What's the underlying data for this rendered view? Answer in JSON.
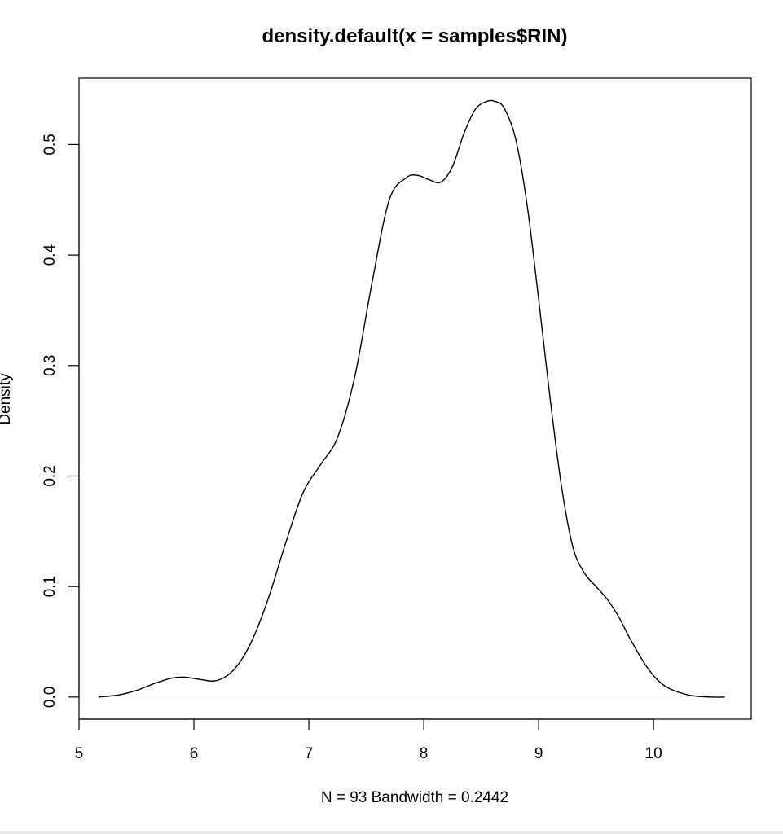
{
  "chart_data": {
    "type": "line",
    "title": "density.default(x = samples$RIN)",
    "xlabel": "N = 93   Bandwidth = 0.2442",
    "ylabel": "Density",
    "xlim": [
      5.0,
      10.85
    ],
    "ylim": [
      -0.02,
      0.56
    ],
    "x_ticks": [
      5,
      6,
      7,
      8,
      9,
      10
    ],
    "y_ticks": [
      0.0,
      0.1,
      0.2,
      0.3,
      0.4,
      0.5
    ],
    "x_tick_labels": [
      "5",
      "6",
      "7",
      "8",
      "9",
      "10"
    ],
    "y_tick_labels": [
      "0.0",
      "0.1",
      "0.2",
      "0.3",
      "0.4",
      "0.5"
    ],
    "grid": false,
    "legend": "none",
    "series": [
      {
        "x": [
          5.17,
          5.35,
          5.5,
          5.65,
          5.8,
          5.92,
          6.05,
          6.2,
          6.35,
          6.5,
          6.65,
          6.8,
          6.95,
          7.1,
          7.25,
          7.4,
          7.55,
          7.7,
          7.85,
          7.95,
          8.05,
          8.15,
          8.25,
          8.35,
          8.45,
          8.55,
          8.62,
          8.7,
          8.8,
          8.9,
          9.0,
          9.1,
          9.2,
          9.3,
          9.4,
          9.5,
          9.6,
          9.7,
          9.8,
          9.95,
          10.1,
          10.3,
          10.5,
          10.62
        ],
        "values": [
          0.0,
          0.002,
          0.006,
          0.012,
          0.017,
          0.018,
          0.016,
          0.015,
          0.025,
          0.05,
          0.09,
          0.14,
          0.185,
          0.21,
          0.235,
          0.29,
          0.375,
          0.45,
          0.47,
          0.472,
          0.468,
          0.466,
          0.48,
          0.51,
          0.532,
          0.539,
          0.539,
          0.533,
          0.505,
          0.445,
          0.36,
          0.27,
          0.19,
          0.135,
          0.112,
          0.1,
          0.088,
          0.072,
          0.052,
          0.026,
          0.01,
          0.002,
          0.0,
          0.0
        ]
      }
    ]
  }
}
